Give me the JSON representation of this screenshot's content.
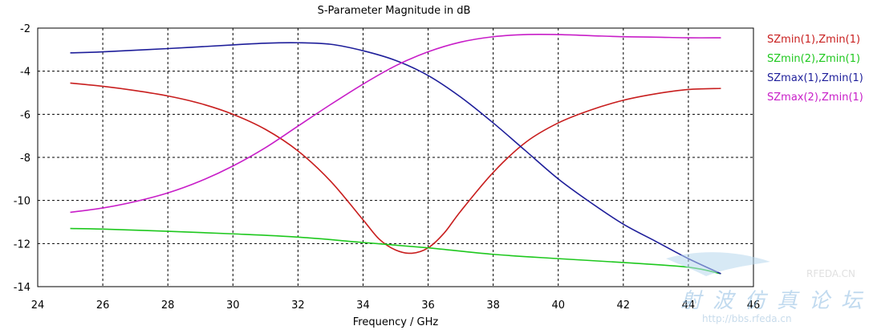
{
  "chart_data": {
    "type": "line",
    "title": "S-Parameter Magnitude in dB",
    "xlabel": "Frequency / GHz",
    "ylabel": "",
    "xlim": [
      24,
      46
    ],
    "ylim": [
      -14,
      -2
    ],
    "xticks": [
      24,
      26,
      28,
      30,
      32,
      34,
      36,
      38,
      40,
      42,
      44,
      46
    ],
    "yticks": [
      -14,
      -12,
      -10,
      -8,
      -6,
      -4,
      -2
    ],
    "grid": true,
    "legend_position": "right",
    "series": [
      {
        "name": "SZmin(1),Zmin(1)",
        "color": "#c81e1e",
        "x": [
          25,
          26,
          27,
          28,
          29,
          30,
          31,
          32,
          33,
          34,
          34.5,
          35,
          35.5,
          36,
          36.5,
          37,
          38,
          39,
          40,
          41,
          42,
          43,
          44,
          45
        ],
        "y": [
          -4.55,
          -4.7,
          -4.9,
          -5.15,
          -5.5,
          -6.0,
          -6.7,
          -7.7,
          -9.1,
          -10.9,
          -11.8,
          -12.3,
          -12.45,
          -12.2,
          -11.5,
          -10.5,
          -8.7,
          -7.3,
          -6.4,
          -5.8,
          -5.35,
          -5.05,
          -4.85,
          -4.8
        ]
      },
      {
        "name": "SZmin(2),Zmin(1)",
        "color": "#1ec81e",
        "x": [
          25,
          26,
          28,
          30,
          32,
          34,
          36,
          38,
          40,
          42,
          44,
          45
        ],
        "y": [
          -11.3,
          -11.33,
          -11.43,
          -11.55,
          -11.7,
          -11.95,
          -12.2,
          -12.5,
          -12.7,
          -12.88,
          -13.1,
          -13.4
        ]
      },
      {
        "name": "SZmax(1),Zmin(1)",
        "color": "#1e1e9a",
        "x": [
          25,
          26,
          28,
          30,
          31,
          32,
          33,
          34,
          35,
          36,
          37,
          38,
          39,
          40,
          41,
          42,
          43,
          44,
          45
        ],
        "y": [
          -3.15,
          -3.1,
          -2.95,
          -2.78,
          -2.7,
          -2.68,
          -2.75,
          -3.05,
          -3.5,
          -4.2,
          -5.2,
          -6.4,
          -7.7,
          -9.0,
          -10.1,
          -11.1,
          -11.9,
          -12.7,
          -13.4
        ]
      },
      {
        "name": "SZmax(2),Zmin(1)",
        "color": "#c81ec8",
        "x": [
          25,
          26,
          27,
          28,
          29,
          30,
          31,
          32,
          33,
          34,
          35,
          36,
          37,
          38,
          39,
          40,
          41,
          42,
          43,
          44,
          45
        ],
        "y": [
          -10.55,
          -10.35,
          -10.05,
          -9.65,
          -9.1,
          -8.4,
          -7.55,
          -6.55,
          -5.55,
          -4.6,
          -3.75,
          -3.1,
          -2.65,
          -2.4,
          -2.3,
          -2.3,
          -2.35,
          -2.4,
          -2.42,
          -2.45,
          -2.45
        ]
      }
    ]
  },
  "watermark": {
    "brand": "RFEDA.CN",
    "chinese": "射波仿真论坛",
    "url": "http://bbs.rfeda.cn"
  }
}
